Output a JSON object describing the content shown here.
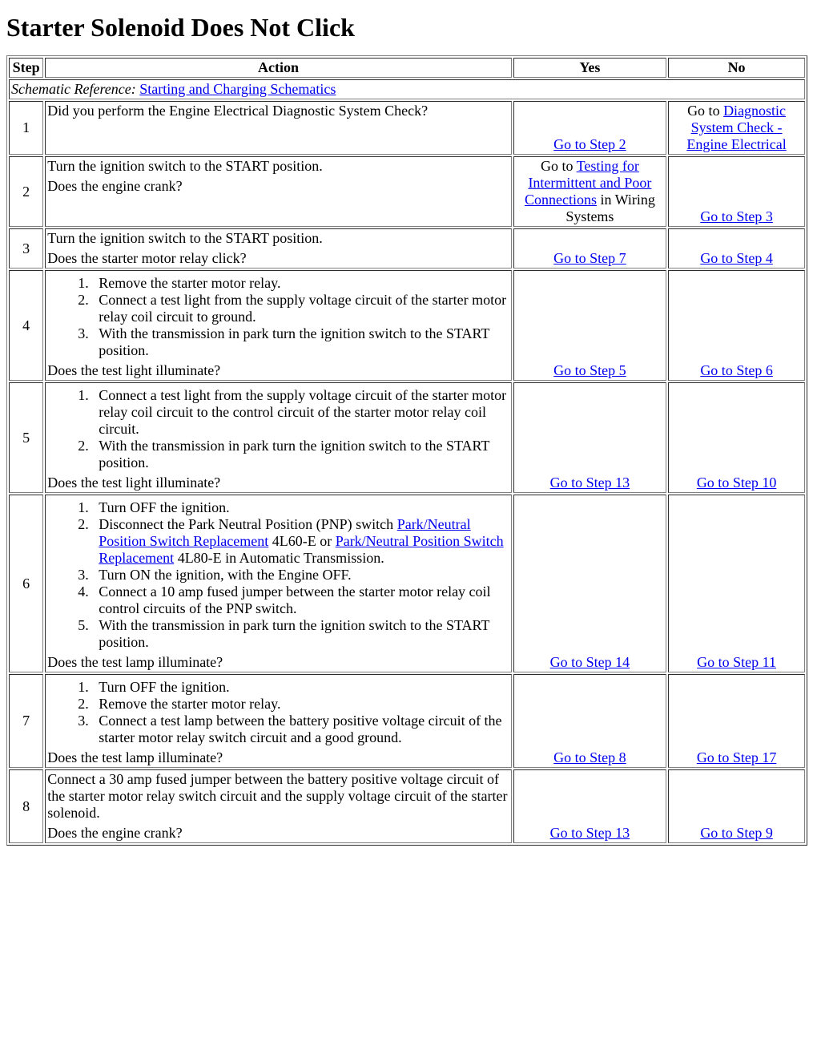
{
  "page": {
    "title": "Starter Solenoid Does Not Click"
  },
  "table": {
    "headers": {
      "step": "Step",
      "action": "Action",
      "yes": "Yes",
      "no": "No"
    },
    "schematic": {
      "label": "Schematic Reference: ",
      "link_text": "Starting and Charging Schematics"
    },
    "rows": [
      {
        "step": "1",
        "action_text": "Did you perform the Engine Electrical Diagnostic System Check?",
        "yes_prefix": "",
        "yes_link": "Go to Step 2",
        "yes_suffix": "",
        "no_prefix": "Go to ",
        "no_link": "Diagnostic System Check - Engine Electrical",
        "no_suffix": ""
      },
      {
        "step": "2",
        "action_p1": "Turn the ignition switch to the START position.",
        "action_q": "Does the engine crank?",
        "yes_prefix": "Go to ",
        "yes_link": "Testing for Intermittent and Poor Connections",
        "yes_suffix": " in Wiring Systems",
        "no_prefix": "",
        "no_link": "Go to Step 3",
        "no_suffix": ""
      },
      {
        "step": "3",
        "action_p1": "Turn the ignition switch to the START position.",
        "action_q": "Does the starter motor relay click?",
        "yes_prefix": "",
        "yes_link": "Go to Step 7",
        "yes_suffix": "",
        "no_prefix": "",
        "no_link": "Go to Step 4",
        "no_suffix": ""
      },
      {
        "step": "4",
        "list": [
          "Remove the starter motor relay.",
          "Connect a test light from the supply voltage circuit of the starter motor relay coil circuit to ground.",
          "With the transmission in park turn the ignition switch to the START position."
        ],
        "action_q": "Does the test light illuminate?",
        "yes_prefix": "",
        "yes_link": "Go to Step 5",
        "yes_suffix": "",
        "no_prefix": "",
        "no_link": "Go to Step 6",
        "no_suffix": ""
      },
      {
        "step": "5",
        "list": [
          "Connect a test light from the supply voltage circuit of the starter motor relay coil circuit to the control circuit of the starter motor relay coil circuit.",
          "With the transmission in park turn the ignition switch to the START position."
        ],
        "action_q": "Does the test light illuminate?",
        "yes_prefix": "",
        "yes_link": "Go to Step 13",
        "yes_suffix": "",
        "no_prefix": "",
        "no_link": "Go to Step 10",
        "no_suffix": ""
      },
      {
        "step": "6",
        "list_special": {
          "i1": "Turn OFF the ignition.",
          "i2_a": "Disconnect the Park Neutral Position (PNP) switch ",
          "i2_link1": "Park/Neutral Position Switch Replacement",
          "i2_b": " 4L60-E or ",
          "i2_link2": "Park/Neutral Position Switch Replacement",
          "i2_c": " 4L80-E in Automatic Transmission.",
          "i3": "Turn ON the ignition, with the Engine OFF.",
          "i4": "Connect a 10 amp fused jumper between the starter motor relay coil control circuits of the PNP switch.",
          "i5": "With the transmission in park turn the ignition switch to the START position."
        },
        "action_q": "Does the test lamp illuminate?",
        "yes_prefix": "",
        "yes_link": "Go to Step 14",
        "yes_suffix": "",
        "no_prefix": "",
        "no_link": "Go to Step 11",
        "no_suffix": ""
      },
      {
        "step": "7",
        "list": [
          "Turn OFF the ignition.",
          "Remove the starter motor relay.",
          "Connect a test lamp between the battery positive voltage circuit of the starter motor relay switch circuit and a good ground."
        ],
        "action_q": "Does the test lamp illuminate?",
        "yes_prefix": "",
        "yes_link": "Go to Step 8",
        "yes_suffix": "",
        "no_prefix": "",
        "no_link": "Go to Step 17",
        "no_suffix": ""
      },
      {
        "step": "8",
        "action_p1": "Connect a 30 amp fused jumper between the battery positive voltage circuit of the starter motor relay switch circuit and the supply voltage circuit of the starter solenoid.",
        "action_q": "Does the engine crank?",
        "yes_prefix": "",
        "yes_link": "Go to Step 13",
        "yes_suffix": "",
        "no_prefix": "",
        "no_link": "Go to Step 9",
        "no_suffix": ""
      }
    ]
  }
}
